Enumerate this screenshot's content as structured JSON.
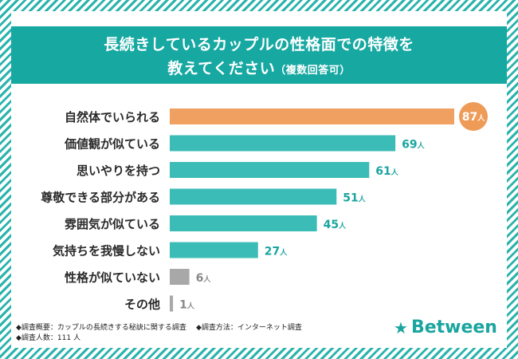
{
  "title": {
    "line1": "長続きしているカップルの性格面での特徴を",
    "line2": "教えてください",
    "note": "（複数回答可）"
  },
  "chart_data": {
    "type": "bar",
    "orientation": "horizontal",
    "categories": [
      "自然体でいられる",
      "価値観が似ている",
      "思いやりを持つ",
      "尊敬できる部分がある",
      "雰囲気が似ている",
      "気持ちを我慢しない",
      "性格が似ていない",
      "その他"
    ],
    "values": [
      87,
      69,
      61,
      51,
      45,
      27,
      6,
      1
    ],
    "value_suffix": "人",
    "xlim": [
      0,
      87
    ],
    "colors": {
      "top": "#f0a060",
      "main": "#3cbcb6",
      "low": "#a8a8a8",
      "label_teal": "#1aa59f",
      "label_gray": "#888888",
      "highlight_badge": "#ef9b58"
    }
  },
  "footer": {
    "note1": "◆調査概要：カップルの長続きする秘訣に関する調査",
    "note2": "◆調査方法：インターネット調査",
    "note3": "◆調査人数：111 人"
  },
  "logo": {
    "icon": "star-icon",
    "text": "Between"
  }
}
